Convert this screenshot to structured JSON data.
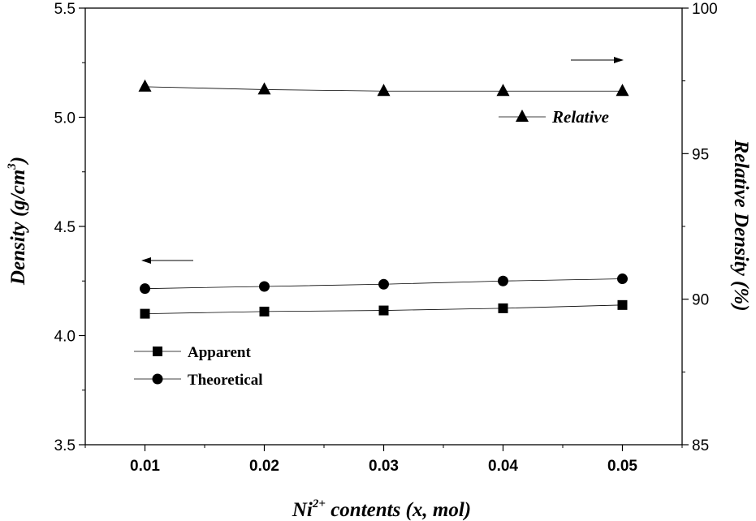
{
  "chart_data": {
    "type": "line",
    "x": [
      0.01,
      0.02,
      0.03,
      0.04,
      0.05
    ],
    "x_tick_labels": [
      "0.01",
      "0.02",
      "0.03",
      "0.04",
      "0.05"
    ],
    "xlim": [
      0.005,
      0.055
    ],
    "xlabel": {
      "prefix": "Ni",
      "superscript": "2+",
      "suffix": " contents (x, mol)"
    },
    "ylabel_left": {
      "prefix": "Density (g/cm",
      "superscript": "3",
      "suffix": ")"
    },
    "ylabel_right": "Relative Density (%)",
    "ylim_left": [
      3.5,
      5.5
    ],
    "ylim_right": [
      85,
      100
    ],
    "y_left_ticks": [
      "3.5",
      "4.0",
      "4.5",
      "5.0",
      "5.5"
    ],
    "y_right_ticks": [
      "85",
      "90",
      "95",
      "100"
    ],
    "grid": false,
    "series": [
      {
        "name": "Apparent",
        "axis": "left",
        "marker": "square",
        "values": [
          4.1,
          4.11,
          4.115,
          4.125,
          4.14
        ]
      },
      {
        "name": "Theoretical",
        "axis": "left",
        "marker": "circle",
        "values": [
          4.215,
          4.225,
          4.235,
          4.25,
          4.26
        ]
      },
      {
        "name": "Relative",
        "axis": "right",
        "marker": "triangle",
        "values": [
          97.3,
          97.2,
          97.15,
          97.15,
          97.15
        ]
      }
    ],
    "annotations": [
      {
        "type": "arrow",
        "direction": "left",
        "target_axis": "left"
      },
      {
        "type": "arrow",
        "direction": "right",
        "target_axis": "right"
      }
    ]
  }
}
